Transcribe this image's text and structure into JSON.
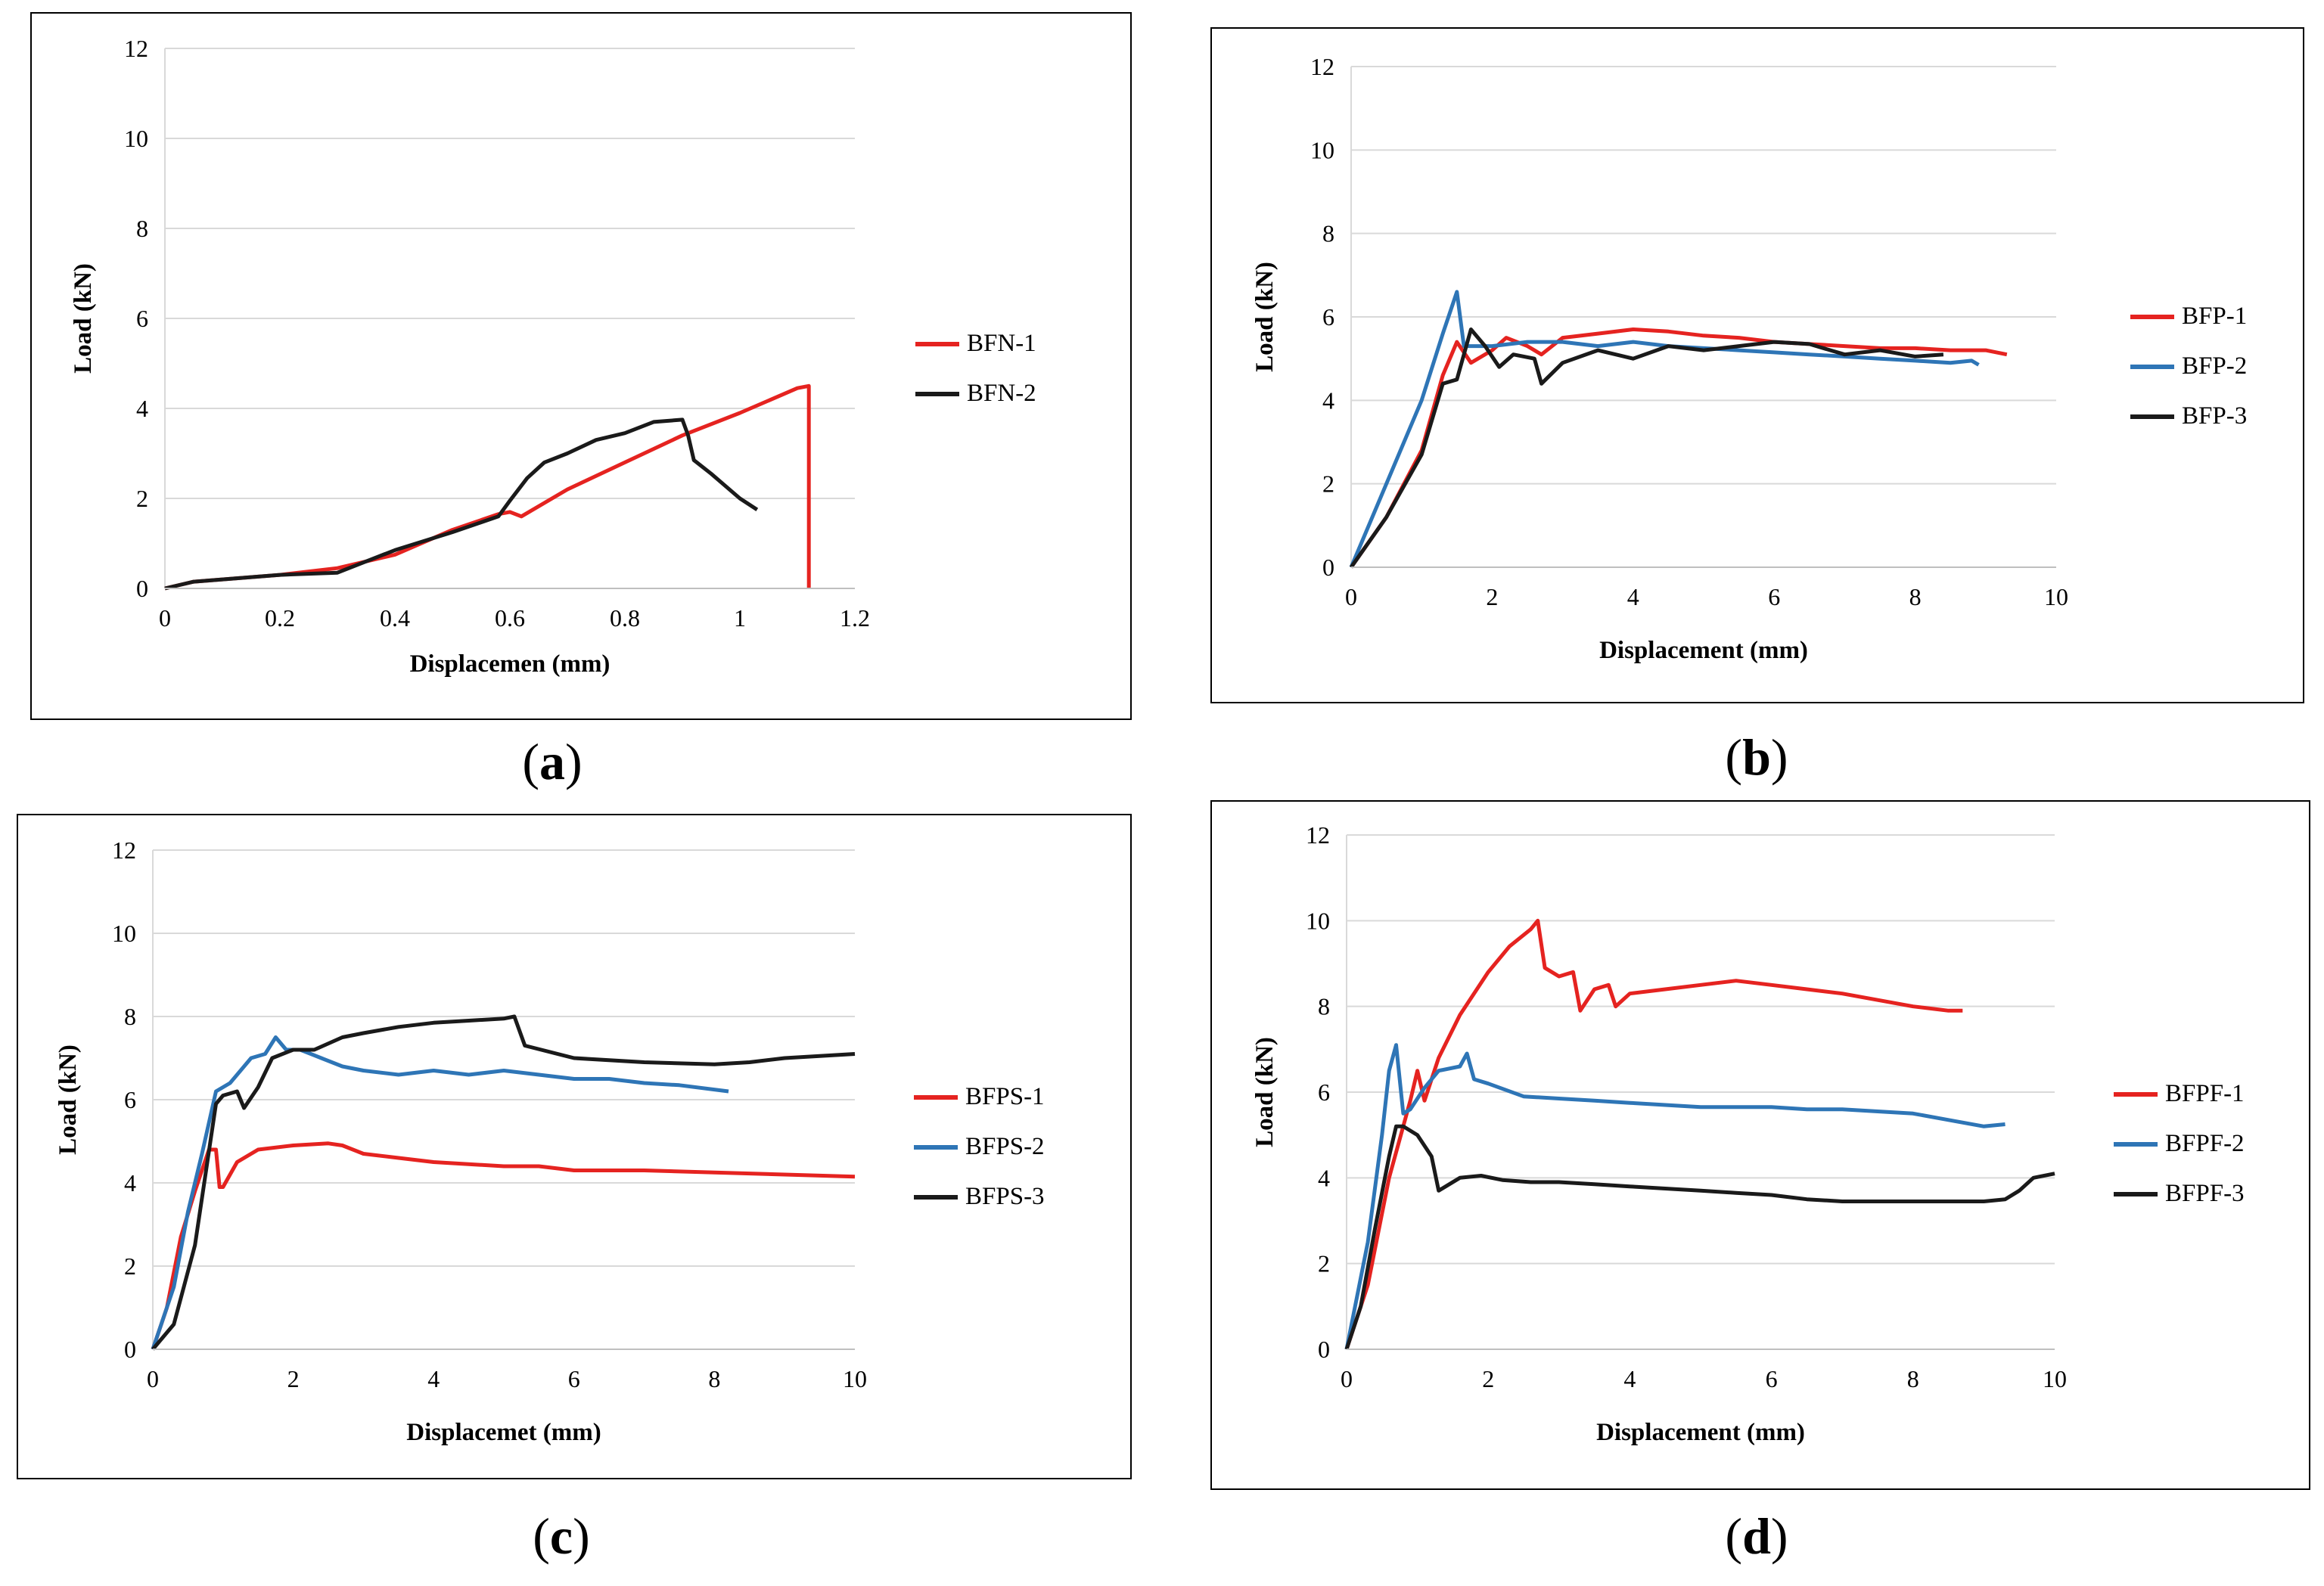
{
  "panel_labels": [
    "a",
    "b",
    "c",
    "d"
  ],
  "chart_data": [
    {
      "type": "line",
      "xlabel": "Displacemen (mm)",
      "ylabel": "Load (kN)",
      "xlim": [
        0,
        1.2
      ],
      "ylim": [
        0,
        12
      ],
      "xticks": [
        "0",
        "0.2",
        "0.4",
        "0.6",
        "0.8",
        "1",
        "1.2"
      ],
      "yticks": [
        "0",
        "2",
        "4",
        "6",
        "8",
        "10",
        "12"
      ],
      "grid": true,
      "legend_position": "right",
      "series": [
        {
          "name": "BFN-1",
          "color": "#e52320",
          "x": [
            0,
            0.05,
            0.1,
            0.2,
            0.3,
            0.4,
            0.5,
            0.58,
            0.6,
            0.62,
            0.7,
            0.8,
            0.9,
            1.0,
            1.1,
            1.12,
            1.12
          ],
          "y": [
            0,
            0.15,
            0.2,
            0.3,
            0.45,
            0.75,
            1.3,
            1.65,
            1.7,
            1.6,
            2.2,
            2.8,
            3.4,
            3.9,
            4.45,
            4.5,
            0
          ]
        },
        {
          "name": "BFN-2",
          "color": "#1a1a1a",
          "x": [
            0,
            0.05,
            0.1,
            0.2,
            0.3,
            0.4,
            0.5,
            0.58,
            0.6,
            0.63,
            0.66,
            0.7,
            0.75,
            0.8,
            0.85,
            0.9,
            0.91,
            0.92,
            0.95,
            1.0,
            1.03
          ],
          "y": [
            0,
            0.15,
            0.2,
            0.3,
            0.35,
            0.85,
            1.25,
            1.6,
            1.95,
            2.45,
            2.8,
            3.0,
            3.3,
            3.45,
            3.7,
            3.75,
            3.4,
            2.85,
            2.55,
            2.0,
            1.75
          ]
        }
      ]
    },
    {
      "type": "line",
      "xlabel": "Displacement (mm)",
      "ylabel": "Load (kN)",
      "xlim": [
        0,
        10
      ],
      "ylim": [
        0,
        12
      ],
      "xticks": [
        "0",
        "2",
        "4",
        "6",
        "8",
        "10"
      ],
      "yticks": [
        "0",
        "2",
        "4",
        "6",
        "8",
        "10",
        "12"
      ],
      "grid": true,
      "legend_position": "right",
      "series": [
        {
          "name": "BFP-1",
          "color": "#e52320",
          "x": [
            0,
            0.5,
            1.0,
            1.3,
            1.5,
            1.7,
            2.0,
            2.2,
            2.5,
            2.7,
            3.0,
            3.5,
            4.0,
            4.5,
            5.0,
            5.5,
            6.0,
            6.5,
            7.0,
            7.5,
            8.0,
            8.5,
            9.0,
            9.3
          ],
          "y": [
            0,
            1.2,
            2.8,
            4.6,
            5.4,
            4.9,
            5.2,
            5.5,
            5.3,
            5.1,
            5.5,
            5.6,
            5.7,
            5.65,
            5.55,
            5.5,
            5.4,
            5.35,
            5.3,
            5.25,
            5.25,
            5.2,
            5.2,
            5.1
          ]
        },
        {
          "name": "BFP-2",
          "color": "#2e75b6",
          "x": [
            0,
            0.5,
            1.0,
            1.3,
            1.5,
            1.6,
            2.0,
            2.5,
            3.0,
            3.5,
            4.0,
            4.5,
            5.0,
            5.5,
            6.0,
            6.5,
            7.0,
            7.5,
            8.0,
            8.5,
            8.8,
            8.9
          ],
          "y": [
            0,
            2.0,
            4.0,
            5.6,
            6.6,
            5.3,
            5.3,
            5.4,
            5.4,
            5.3,
            5.4,
            5.3,
            5.25,
            5.2,
            5.15,
            5.1,
            5.05,
            5.0,
            4.95,
            4.9,
            4.95,
            4.85
          ]
        },
        {
          "name": "BFP-3",
          "color": "#1a1a1a",
          "x": [
            0,
            0.5,
            1.0,
            1.3,
            1.5,
            1.7,
            1.9,
            2.1,
            2.3,
            2.6,
            2.7,
            3.0,
            3.5,
            4.0,
            4.5,
            5.0,
            5.5,
            6.0,
            6.5,
            7.0,
            7.5,
            8.0,
            8.4
          ],
          "y": [
            0,
            1.2,
            2.7,
            4.4,
            4.5,
            5.7,
            5.3,
            4.8,
            5.1,
            5.0,
            4.4,
            4.9,
            5.2,
            5.0,
            5.3,
            5.2,
            5.3,
            5.4,
            5.35,
            5.1,
            5.2,
            5.05,
            5.1
          ]
        }
      ]
    },
    {
      "type": "line",
      "xlabel": "Displacemet (mm)",
      "ylabel": "Load (kN)",
      "xlim": [
        0,
        10
      ],
      "ylim": [
        0,
        12
      ],
      "xticks": [
        "0",
        "2",
        "4",
        "6",
        "8",
        "10"
      ],
      "yticks": [
        "0",
        "2",
        "4",
        "6",
        "8",
        "10",
        "12"
      ],
      "grid": true,
      "legend_position": "right",
      "series": [
        {
          "name": "BFPS-1",
          "color": "#e52320",
          "x": [
            0,
            0.2,
            0.4,
            0.6,
            0.8,
            0.9,
            0.95,
            1.0,
            1.2,
            1.5,
            2.0,
            2.5,
            2.7,
            3.0,
            3.5,
            4.0,
            5.0,
            5.5,
            6.0,
            7.0,
            8.0,
            9.0,
            10.0
          ],
          "y": [
            0,
            1.0,
            2.7,
            3.8,
            4.8,
            4.8,
            3.9,
            3.9,
            4.5,
            4.8,
            4.9,
            4.95,
            4.9,
            4.7,
            4.6,
            4.5,
            4.4,
            4.4,
            4.3,
            4.3,
            4.25,
            4.2,
            4.15
          ]
        },
        {
          "name": "BFPS-2",
          "color": "#2e75b6",
          "x": [
            0,
            0.3,
            0.5,
            0.7,
            0.9,
            1.1,
            1.4,
            1.6,
            1.75,
            1.9,
            2.1,
            2.4,
            2.7,
            3.0,
            3.5,
            4.0,
            4.5,
            5.0,
            5.5,
            6.0,
            6.5,
            7.0,
            7.5,
            8.2
          ],
          "y": [
            0,
            1.5,
            3.3,
            4.7,
            6.2,
            6.4,
            7.0,
            7.1,
            7.5,
            7.2,
            7.2,
            7.0,
            6.8,
            6.7,
            6.6,
            6.7,
            6.6,
            6.7,
            6.6,
            6.5,
            6.5,
            6.4,
            6.35,
            6.2
          ]
        },
        {
          "name": "BFPS-3",
          "color": "#1a1a1a",
          "x": [
            0,
            0.3,
            0.6,
            0.9,
            1.0,
            1.2,
            1.3,
            1.5,
            1.7,
            2.0,
            2.3,
            2.7,
            3.0,
            3.5,
            4.0,
            4.5,
            5.0,
            5.15,
            5.3,
            6.0,
            7.0,
            8.0,
            8.5,
            9.0,
            9.5,
            10.0
          ],
          "y": [
            0,
            0.6,
            2.5,
            5.9,
            6.1,
            6.2,
            5.8,
            6.3,
            7.0,
            7.2,
            7.2,
            7.5,
            7.6,
            7.75,
            7.85,
            7.9,
            7.95,
            8.0,
            7.3,
            7.0,
            6.9,
            6.85,
            6.9,
            7.0,
            7.05,
            7.1
          ]
        }
      ]
    },
    {
      "type": "line",
      "xlabel": "Displacement (mm)",
      "ylabel": "Load (kN)",
      "xlim": [
        0,
        10
      ],
      "ylim": [
        0,
        12
      ],
      "xticks": [
        "0",
        "2",
        "4",
        "6",
        "8",
        "10"
      ],
      "yticks": [
        "0",
        "2",
        "4",
        "6",
        "8",
        "10",
        "12"
      ],
      "grid": true,
      "legend_position": "right",
      "series": [
        {
          "name": "BFPF-1",
          "color": "#e52320",
          "x": [
            0,
            0.3,
            0.6,
            0.9,
            1.0,
            1.1,
            1.3,
            1.6,
            2.0,
            2.3,
            2.6,
            2.7,
            2.8,
            3.0,
            3.2,
            3.3,
            3.5,
            3.7,
            3.8,
            4.0,
            4.5,
            5.0,
            5.5,
            6.0,
            6.5,
            7.0,
            7.5,
            8.0,
            8.5,
            8.7
          ],
          "y": [
            0,
            1.5,
            4.0,
            5.8,
            6.5,
            5.8,
            6.8,
            7.8,
            8.8,
            9.4,
            9.8,
            10.0,
            8.9,
            8.7,
            8.8,
            7.9,
            8.4,
            8.5,
            8.0,
            8.3,
            8.4,
            8.5,
            8.6,
            8.5,
            8.4,
            8.3,
            8.15,
            8.0,
            7.9,
            7.9
          ]
        },
        {
          "name": "BFPF-2",
          "color": "#2e75b6",
          "x": [
            0,
            0.3,
            0.5,
            0.6,
            0.7,
            0.8,
            0.9,
            1.1,
            1.3,
            1.6,
            1.7,
            1.8,
            2.0,
            2.5,
            3.0,
            3.5,
            4.0,
            4.5,
            5.0,
            5.5,
            6.0,
            6.5,
            7.0,
            7.5,
            8.0,
            8.5,
            9.0,
            9.3
          ],
          "y": [
            0,
            2.5,
            5.0,
            6.5,
            7.1,
            5.5,
            5.6,
            6.1,
            6.5,
            6.6,
            6.9,
            6.3,
            6.2,
            5.9,
            5.85,
            5.8,
            5.75,
            5.7,
            5.65,
            5.65,
            5.65,
            5.6,
            5.6,
            5.55,
            5.5,
            5.35,
            5.2,
            5.25
          ]
        },
        {
          "name": "BFPF-3",
          "color": "#1a1a1a",
          "x": [
            0,
            0.2,
            0.4,
            0.6,
            0.7,
            0.8,
            1.0,
            1.2,
            1.3,
            1.4,
            1.6,
            1.9,
            2.2,
            2.6,
            3.0,
            3.5,
            4.0,
            4.5,
            5.0,
            5.5,
            6.0,
            6.5,
            7.0,
            7.5,
            8.0,
            8.5,
            9.0,
            9.3,
            9.5,
            9.7,
            10.0
          ],
          "y": [
            0,
            1.0,
            2.8,
            4.5,
            5.2,
            5.2,
            5.0,
            4.5,
            3.7,
            3.8,
            4.0,
            4.05,
            3.95,
            3.9,
            3.9,
            3.85,
            3.8,
            3.75,
            3.7,
            3.65,
            3.6,
            3.5,
            3.45,
            3.45,
            3.45,
            3.45,
            3.45,
            3.5,
            3.7,
            4.0,
            4.1
          ]
        }
      ]
    }
  ]
}
